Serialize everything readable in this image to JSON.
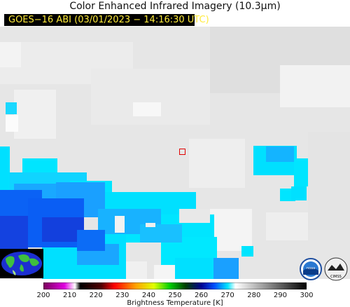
{
  "title": "Color Enhanced Infrared Imagery (10.3µm)",
  "subtitle": "GOES−16 ABI (03/01/2023 − 14:16:30 UTC)",
  "colorbar": {
    "ticks": [
      "200",
      "210",
      "220",
      "230",
      "240",
      "250",
      "260",
      "270",
      "280",
      "290",
      "300"
    ],
    "label": "Brightness Temperature [K]",
    "range": [
      200,
      300
    ]
  },
  "colors": {
    "cyan": "#00e5ff",
    "sky_blue": "#1aa6ff",
    "blue": "#0b62f5",
    "deep_blue": "#1442e0",
    "light_gray": "#e8e8e8",
    "marker": "#e00000"
  }
}
